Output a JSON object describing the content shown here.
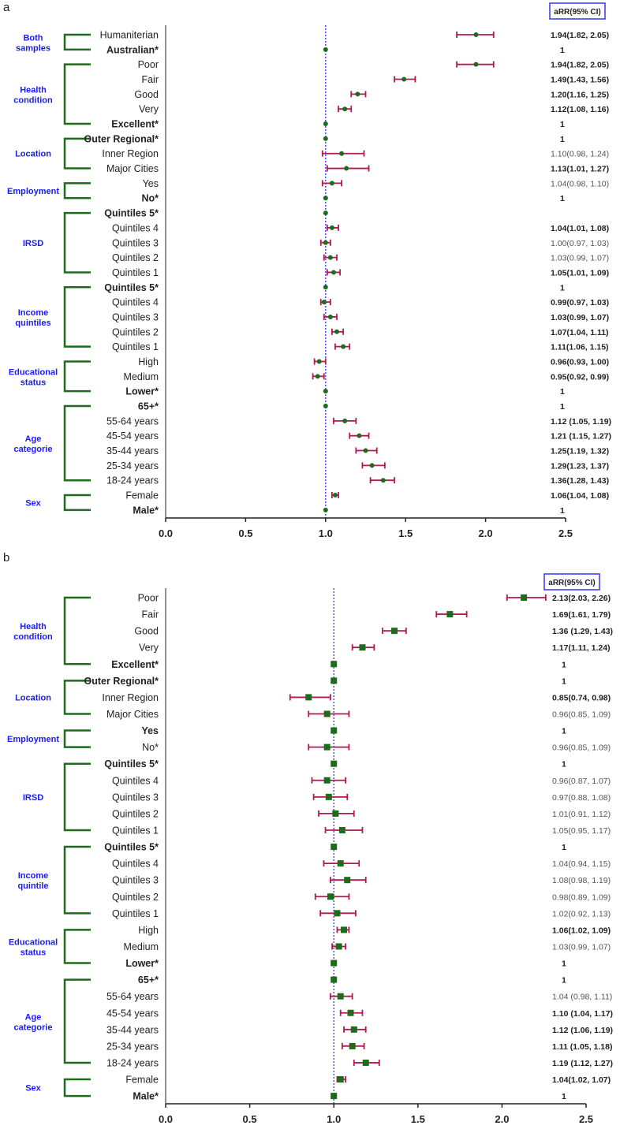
{
  "colors": {
    "point": "#1e6b1e",
    "ci": "#b5174f",
    "reference_line": "#3333ff",
    "bracket": "#1e6b1e",
    "group_label": "#1a1aff"
  },
  "chart_data": [
    {
      "type": "forest",
      "panel_label": "a",
      "marker": "circle",
      "header": "aRR(95% CI)",
      "xlim": [
        0,
        2.5
      ],
      "xticks": [
        "0.0",
        "0.5",
        "1.0",
        "1.5",
        "2.0",
        "2.5"
      ],
      "reference_line": 1.0,
      "groups": [
        {
          "label": "Both samples",
          "rows": [
            {
              "label": "Humaniterian",
              "est": 1.94,
              "lo": 1.82,
              "hi": 2.05,
              "text": "1.94(1.82, 2.05)",
              "bold": true,
              "ref": false
            },
            {
              "label": "Australian*",
              "est": 1,
              "text": "1",
              "ref": true
            }
          ]
        },
        {
          "label": "Health condition",
          "rows": [
            {
              "label": "Poor",
              "est": 1.94,
              "lo": 1.82,
              "hi": 2.05,
              "text": "1.94(1.82, 2.05)",
              "bold": true
            },
            {
              "label": "Fair",
              "est": 1.49,
              "lo": 1.43,
              "hi": 1.56,
              "text": "1.49(1.43, 1.56)",
              "bold": true
            },
            {
              "label": "Good",
              "est": 1.2,
              "lo": 1.16,
              "hi": 1.25,
              "text": "1.20(1.16, 1.25)",
              "bold": true
            },
            {
              "label": "Very",
              "est": 1.12,
              "lo": 1.08,
              "hi": 1.16,
              "text": "1.12(1.08, 1.16)",
              "bold": true
            },
            {
              "label": "Excellent*",
              "est": 1,
              "text": "1",
              "ref": true
            }
          ]
        },
        {
          "label": "Location",
          "rows": [
            {
              "label": "Outer Regional*",
              "est": 1,
              "text": "1",
              "ref": true
            },
            {
              "label": "Inner Region",
              "est": 1.1,
              "lo": 0.98,
              "hi": 1.24,
              "text": "1.10(0.98, 1.24)",
              "bold": false
            },
            {
              "label": "Major Cities",
              "est": 1.13,
              "lo": 1.01,
              "hi": 1.27,
              "text": "1.13(1.01, 1.27)",
              "bold": true
            }
          ]
        },
        {
          "label": "Employment",
          "rows": [
            {
              "label": "Yes",
              "est": 1.04,
              "lo": 0.98,
              "hi": 1.1,
              "text": "1.04(0.98, 1.10)",
              "bold": false
            },
            {
              "label": "No*",
              "est": 1,
              "text": "1",
              "ref": true
            }
          ]
        },
        {
          "label": "IRSD",
          "rows": [
            {
              "label": "Quintiles 5*",
              "est": 1,
              "text": "",
              "ref": true
            },
            {
              "label": "Quintiles 4",
              "est": 1.04,
              "lo": 1.01,
              "hi": 1.08,
              "text": "1.04(1.01, 1.08)",
              "bold": true
            },
            {
              "label": "Quintiles 3",
              "est": 1.0,
              "lo": 0.97,
              "hi": 1.03,
              "text": "1.00(0.97, 1.03)",
              "bold": false
            },
            {
              "label": "Quintiles 2",
              "est": 1.03,
              "lo": 0.99,
              "hi": 1.07,
              "text": "1.03(0.99, 1.07)",
              "bold": false
            },
            {
              "label": "Quintiles 1",
              "est": 1.05,
              "lo": 1.01,
              "hi": 1.09,
              "text": "1.05(1.01, 1.09)",
              "bold": true
            }
          ]
        },
        {
          "label": "Income quintiles",
          "rows": [
            {
              "label": "Quintiles 5*",
              "est": 1,
              "text": "1",
              "ref": true
            },
            {
              "label": "Quintiles 4",
              "est": 0.99,
              "lo": 0.97,
              "hi": 1.03,
              "text": "0.99(0.97, 1.03)",
              "bold": true
            },
            {
              "label": "Quintiles 3",
              "est": 1.03,
              "lo": 0.99,
              "hi": 1.07,
              "text": "1.03(0.99, 1.07)",
              "bold": true
            },
            {
              "label": "Quintiles 2",
              "est": 1.07,
              "lo": 1.04,
              "hi": 1.11,
              "text": "1.07(1.04, 1.11)",
              "bold": true
            },
            {
              "label": "Quintiles 1",
              "est": 1.11,
              "lo": 1.06,
              "hi": 1.15,
              "text": "1.11(1.06, 1.15)",
              "bold": true
            }
          ]
        },
        {
          "label": "Educational status",
          "rows": [
            {
              "label": "High",
              "est": 0.96,
              "lo": 0.93,
              "hi": 1.0,
              "text": "0.96(0.93, 1.00)",
              "bold": true
            },
            {
              "label": "Medium",
              "est": 0.95,
              "lo": 0.92,
              "hi": 0.99,
              "text": "0.95(0.92, 0.99)",
              "bold": true
            },
            {
              "label": "Lower*",
              "est": 1,
              "text": "1",
              "ref": true
            }
          ]
        },
        {
          "label": "Age categorie",
          "rows": [
            {
              "label": "65+*",
              "est": 1,
              "text": "1",
              "ref": true
            },
            {
              "label": "55-64 years",
              "est": 1.12,
              "lo": 1.05,
              "hi": 1.19,
              "text": "1.12 (1.05, 1.19)",
              "bold": true
            },
            {
              "label": "45-54 years",
              "est": 1.21,
              "lo": 1.15,
              "hi": 1.27,
              "text": "1.21 (1.15, 1.27)",
              "bold": true
            },
            {
              "label": "35-44 years",
              "est": 1.25,
              "lo": 1.19,
              "hi": 1.32,
              "text": "1.25(1.19, 1.32)",
              "bold": true
            },
            {
              "label": "25-34 years",
              "est": 1.29,
              "lo": 1.23,
              "hi": 1.37,
              "text": "1.29(1.23, 1.37)",
              "bold": true
            },
            {
              "label": "18-24 years",
              "est": 1.36,
              "lo": 1.28,
              "hi": 1.43,
              "text": "1.36(1.28, 1.43)",
              "bold": true
            }
          ]
        },
        {
          "label": "Sex",
          "rows": [
            {
              "label": "Female",
              "est": 1.06,
              "lo": 1.04,
              "hi": 1.08,
              "text": "1.06(1.04, 1.08)",
              "bold": true
            },
            {
              "label": "Male*",
              "est": 1,
              "text": "1",
              "ref": true
            }
          ]
        }
      ]
    },
    {
      "type": "forest",
      "panel_label": "b",
      "marker": "square",
      "header": "aRR(95% CI)",
      "xlim": [
        0,
        2.5
      ],
      "xticks": [
        "0.0",
        "0.5",
        "1.0",
        "1.5",
        "2.0",
        "2.5"
      ],
      "reference_line": 1.0,
      "groups": [
        {
          "label": "Health condition",
          "rows": [
            {
              "label": "Poor",
              "est": 2.13,
              "lo": 2.03,
              "hi": 2.26,
              "text": "2.13(2.03, 2.26)",
              "bold": true
            },
            {
              "label": "Fair",
              "est": 1.69,
              "lo": 1.61,
              "hi": 1.79,
              "text": "1.69(1.61, 1.79)",
              "bold": true
            },
            {
              "label": "Good",
              "est": 1.36,
              "lo": 1.29,
              "hi": 1.43,
              "text": "1.36 (1.29, 1.43)",
              "bold": true
            },
            {
              "label": "Very",
              "est": 1.17,
              "lo": 1.11,
              "hi": 1.24,
              "text": "1.17(1.11, 1.24)",
              "bold": true
            },
            {
              "label": "Excellent*",
              "est": 1,
              "text": "1",
              "ref": true
            }
          ]
        },
        {
          "label": "Location",
          "rows": [
            {
              "label": "Outer Regional*",
              "est": 1,
              "text": "1",
              "ref": true
            },
            {
              "label": "Inner Region",
              "est": 0.85,
              "lo": 0.74,
              "hi": 0.98,
              "text": "0.85(0.74, 0.98)",
              "bold": true
            },
            {
              "label": "Major Cities",
              "est": 0.96,
              "lo": 0.85,
              "hi": 1.09,
              "text": "0.96(0.85, 1.09)",
              "bold": false
            }
          ]
        },
        {
          "label": "Employment",
          "rows": [
            {
              "label": "Yes",
              "est": 1,
              "text": "1",
              "ref": true
            },
            {
              "label": "No*",
              "est": 0.96,
              "lo": 0.85,
              "hi": 1.09,
              "text": "0.96(0.85, 1.09)",
              "bold": false
            }
          ]
        },
        {
          "label": "IRSD",
          "rows": [
            {
              "label": "Quintiles 5*",
              "est": 1,
              "text": "1",
              "ref": true
            },
            {
              "label": "Quintiles 4",
              "est": 0.96,
              "lo": 0.87,
              "hi": 1.07,
              "text": "0.96(0.87, 1.07)",
              "bold": false
            },
            {
              "label": "Quintiles 3",
              "est": 0.97,
              "lo": 0.88,
              "hi": 1.08,
              "text": "0.97(0.88, 1.08)",
              "bold": false
            },
            {
              "label": "Quintiles 2",
              "est": 1.01,
              "lo": 0.91,
              "hi": 1.12,
              "text": "1.01(0.91, 1.12)",
              "bold": false
            },
            {
              "label": "Quintiles 1",
              "est": 1.05,
              "lo": 0.95,
              "hi": 1.17,
              "text": "1.05(0.95, 1.17)",
              "bold": false
            }
          ]
        },
        {
          "label": "Income quintile",
          "rows": [
            {
              "label": "Quintiles 5*",
              "est": 1,
              "text": "1",
              "ref": true
            },
            {
              "label": "Quintiles 4",
              "est": 1.04,
              "lo": 0.94,
              "hi": 1.15,
              "text": "1.04(0.94, 1.15)",
              "bold": false
            },
            {
              "label": "Quintiles 3",
              "est": 1.08,
              "lo": 0.98,
              "hi": 1.19,
              "text": "1.08(0.98, 1.19)",
              "bold": false
            },
            {
              "label": "Quintiles 2",
              "est": 0.98,
              "lo": 0.89,
              "hi": 1.09,
              "text": "0.98(0.89, 1.09)",
              "bold": false
            },
            {
              "label": "Quintiles 1",
              "est": 1.02,
              "lo": 0.92,
              "hi": 1.13,
              "text": "1.02(0.92, 1.13)",
              "bold": false
            }
          ]
        },
        {
          "label": "Educational status",
          "rows": [
            {
              "label": "High",
              "est": 1.06,
              "lo": 1.02,
              "hi": 1.09,
              "text": "1.06(1.02, 1.09)",
              "bold": true
            },
            {
              "label": "Medium",
              "est": 1.03,
              "lo": 0.99,
              "hi": 1.07,
              "text": "1.03(0.99, 1.07)",
              "bold": false
            },
            {
              "label": "Lower*",
              "est": 1,
              "text": "1",
              "ref": true
            }
          ]
        },
        {
          "label": "Age categorie",
          "rows": [
            {
              "label": "65+*",
              "est": 1,
              "text": "1",
              "ref": true
            },
            {
              "label": "55-64 years",
              "est": 1.04,
              "lo": 0.98,
              "hi": 1.11,
              "text": "1.04 (0.98, 1.11)",
              "bold": false
            },
            {
              "label": "45-54 years",
              "est": 1.1,
              "lo": 1.04,
              "hi": 1.17,
              "text": "1.10 (1.04, 1.17)",
              "bold": true
            },
            {
              "label": "35-44 years",
              "est": 1.12,
              "lo": 1.06,
              "hi": 1.19,
              "text": "1.12 (1.06, 1.19)",
              "bold": true
            },
            {
              "label": "25-34 years",
              "est": 1.11,
              "lo": 1.05,
              "hi": 1.18,
              "text": "1.11 (1.05, 1.18)",
              "bold": true
            },
            {
              "label": "18-24 years",
              "est": 1.19,
              "lo": 1.12,
              "hi": 1.27,
              "text": "1.19 (1.12, 1.27)",
              "bold": true
            }
          ]
        },
        {
          "label": "Sex",
          "rows": [
            {
              "label": "Female",
              "est": 1.04,
              "lo": 1.02,
              "hi": 1.07,
              "text": "1.04(1.02, 1.07)",
              "bold": true
            },
            {
              "label": "Male*",
              "est": 1,
              "text": "1",
              "ref": true
            }
          ]
        }
      ]
    }
  ]
}
